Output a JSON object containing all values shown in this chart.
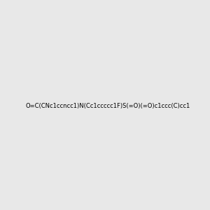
{
  "smiles": "O=C(CNc1ccncc1)N(Cc1ccccc1F)S(=O)(=O)c1ccc(C)cc1",
  "title": "",
  "bg_color": "#e8e8e8",
  "figsize": [
    3.0,
    3.0
  ],
  "dpi": 100
}
